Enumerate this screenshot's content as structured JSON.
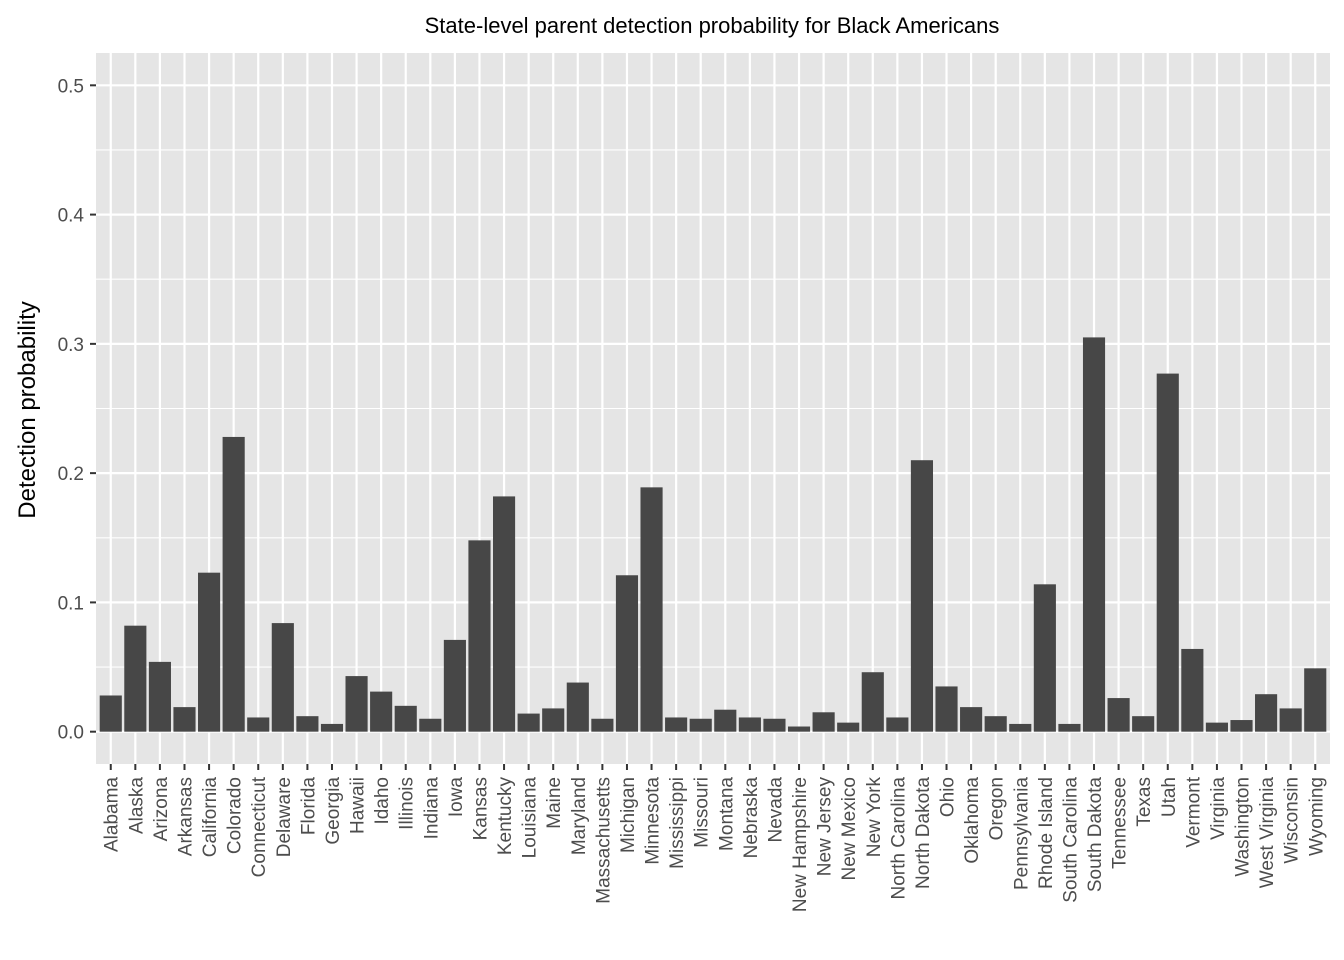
{
  "chart_data": {
    "type": "bar",
    "title": "State-level parent detection probability for Black Americans",
    "xlabel": "",
    "ylabel": "Detection probability",
    "ylim": [
      -0.025,
      0.525
    ],
    "yticks": [
      0.0,
      0.1,
      0.2,
      0.3,
      0.4,
      0.5
    ],
    "ytick_labels": [
      "0.0",
      "0.1",
      "0.2",
      "0.3",
      "0.4",
      "0.5"
    ],
    "grid": true,
    "categories": [
      "Alabama",
      "Alaska",
      "Arizona",
      "Arkansas",
      "California",
      "Colorado",
      "Connecticut",
      "Delaware",
      "Florida",
      "Georgia",
      "Hawaii",
      "Idaho",
      "Illinois",
      "Indiana",
      "Iowa",
      "Kansas",
      "Kentucky",
      "Louisiana",
      "Maine",
      "Maryland",
      "Massachusetts",
      "Michigan",
      "Minnesota",
      "Mississippi",
      "Missouri",
      "Montana",
      "Nebraska",
      "Nevada",
      "New Hampshire",
      "New Jersey",
      "New Mexico",
      "New York",
      "North Carolina",
      "North Dakota",
      "Ohio",
      "Oklahoma",
      "Oregon",
      "Pennsylvania",
      "Rhode Island",
      "South Carolina",
      "South Dakota",
      "Tennessee",
      "Texas",
      "Utah",
      "Vermont",
      "Virginia",
      "Washington",
      "West Virginia",
      "Wisconsin",
      "Wyoming"
    ],
    "values": [
      0.028,
      0.082,
      0.054,
      0.019,
      0.123,
      0.228,
      0.011,
      0.084,
      0.012,
      0.006,
      0.043,
      0.031,
      0.02,
      0.01,
      0.071,
      0.148,
      0.182,
      0.014,
      0.018,
      0.038,
      0.01,
      0.121,
      0.189,
      0.011,
      0.01,
      0.017,
      0.011,
      0.01,
      0.004,
      0.015,
      0.007,
      0.046,
      0.011,
      0.21,
      0.035,
      0.019,
      0.012,
      0.006,
      0.114,
      0.006,
      0.305,
      0.026,
      0.012,
      0.277,
      0.064,
      0.007,
      0.009,
      0.029,
      0.018,
      0.049
    ],
    "colors": {
      "panel": "#e5e5e5",
      "grid_major": "#ffffff",
      "bar": "#474747",
      "tick": "#333333",
      "tick_text": "#4d4d4d"
    }
  }
}
